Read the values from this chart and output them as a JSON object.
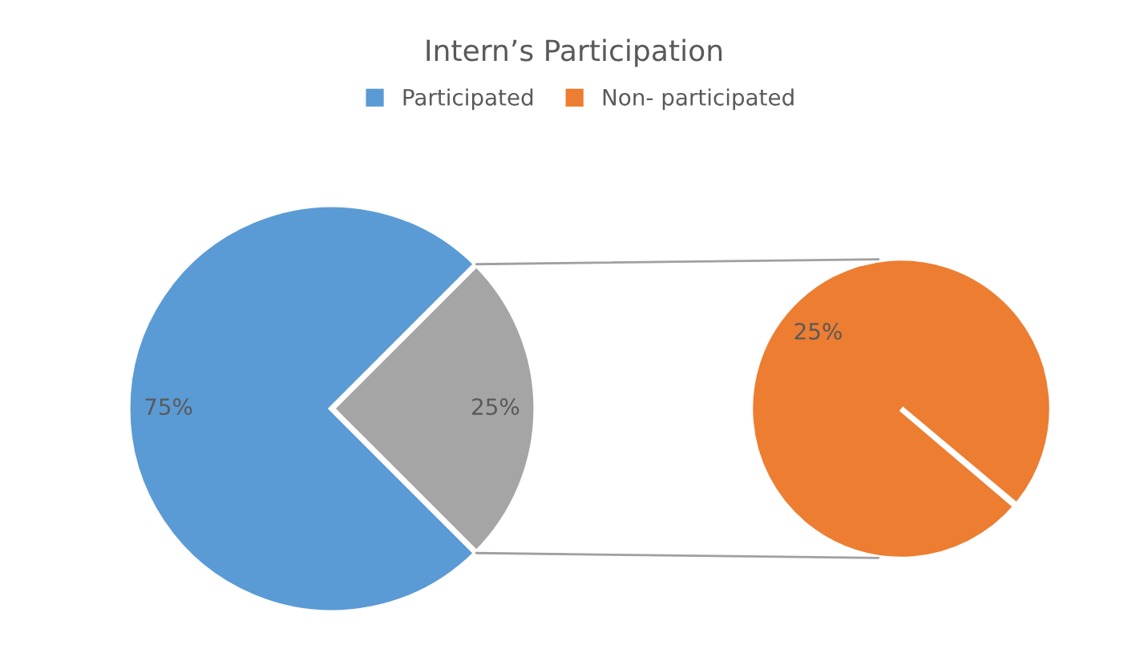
{
  "chart_data": [
    {
      "type": "pie",
      "title": "Intern’s Participation",
      "categories": [
        "Participated",
        null
      ],
      "values": [
        75,
        25
      ],
      "colors": [
        "#5b9bd5",
        "#a5a5a5"
      ],
      "value_labels": [
        "75%",
        "25%"
      ],
      "legend": "top"
    },
    {
      "type": "pie",
      "categories": [
        "Non- participated"
      ],
      "values": [
        25
      ],
      "colors": [
        "#ed7d31"
      ],
      "value_labels": [
        "25%"
      ],
      "legend": "top"
    }
  ]
}
